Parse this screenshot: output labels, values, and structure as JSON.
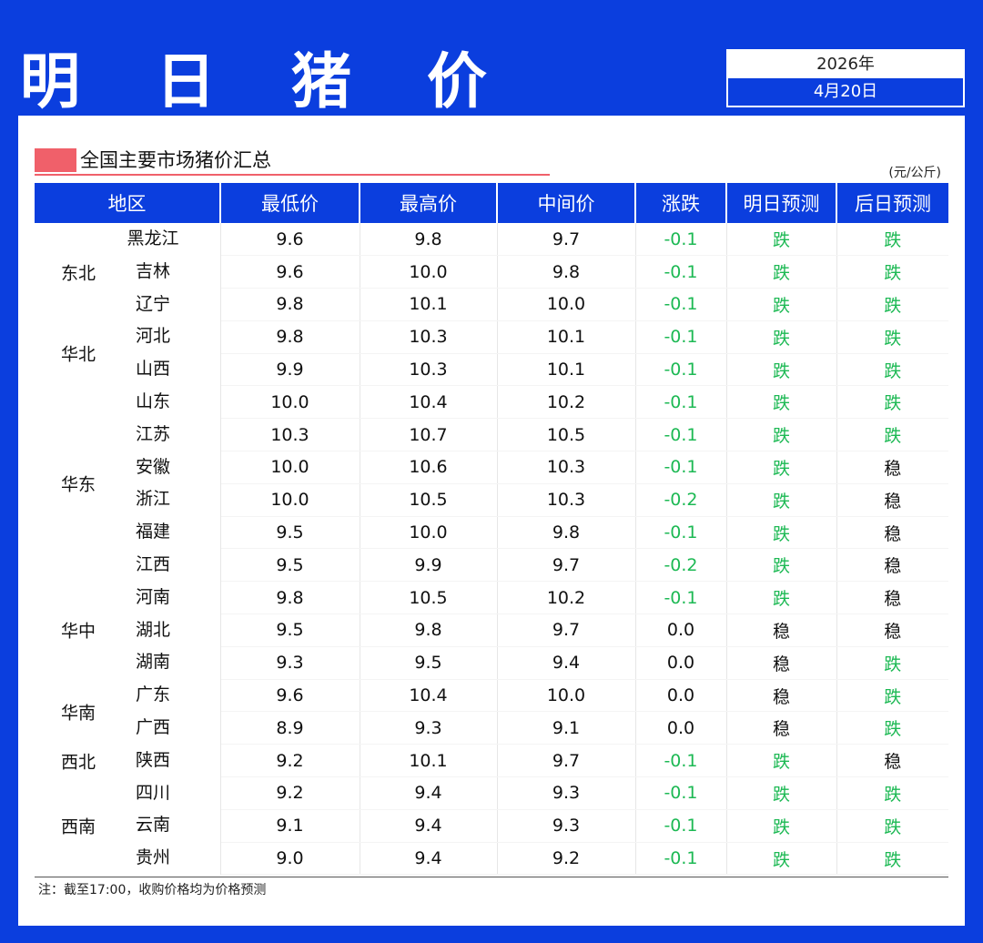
{
  "header": {
    "title": "明 日 猪 价",
    "year": "2026年",
    "date": "4月20日"
  },
  "section": {
    "title": "全国主要市场猪价汇总",
    "unit": "(元/公斤)"
  },
  "colors": {
    "brand_blue": "#0b3ede",
    "accent_red": "#f0606a",
    "fall_green": "#1db954"
  },
  "table": {
    "columns": [
      "地区",
      "最低价",
      "最高价",
      "中间价",
      "涨跌",
      "明日预测",
      "后日预测"
    ],
    "regions": [
      {
        "name": "东北",
        "span": 3
      },
      {
        "name": "华北",
        "span": 2
      },
      {
        "name": "华东",
        "span": 6
      },
      {
        "name": "华中",
        "span": 3
      },
      {
        "name": "华南",
        "span": 2
      },
      {
        "name": "西北",
        "span": 1
      },
      {
        "name": "西南",
        "span": 3
      }
    ],
    "rows": [
      {
        "province": "黑龙江",
        "low": "9.6",
        "high": "9.8",
        "mid": "9.7",
        "change": "-0.1",
        "tomorrow": "跌",
        "after": "跌"
      },
      {
        "province": "吉林",
        "low": "9.6",
        "high": "10.0",
        "mid": "9.8",
        "change": "-0.1",
        "tomorrow": "跌",
        "after": "跌"
      },
      {
        "province": "辽宁",
        "low": "9.8",
        "high": "10.1",
        "mid": "10.0",
        "change": "-0.1",
        "tomorrow": "跌",
        "after": "跌"
      },
      {
        "province": "河北",
        "low": "9.8",
        "high": "10.3",
        "mid": "10.1",
        "change": "-0.1",
        "tomorrow": "跌",
        "after": "跌"
      },
      {
        "province": "山西",
        "low": "9.9",
        "high": "10.3",
        "mid": "10.1",
        "change": "-0.1",
        "tomorrow": "跌",
        "after": "跌"
      },
      {
        "province": "山东",
        "low": "10.0",
        "high": "10.4",
        "mid": "10.2",
        "change": "-0.1",
        "tomorrow": "跌",
        "after": "跌"
      },
      {
        "province": "江苏",
        "low": "10.3",
        "high": "10.7",
        "mid": "10.5",
        "change": "-0.1",
        "tomorrow": "跌",
        "after": "跌"
      },
      {
        "province": "安徽",
        "low": "10.0",
        "high": "10.6",
        "mid": "10.3",
        "change": "-0.1",
        "tomorrow": "跌",
        "after": "稳"
      },
      {
        "province": "浙江",
        "low": "10.0",
        "high": "10.5",
        "mid": "10.3",
        "change": "-0.2",
        "tomorrow": "跌",
        "after": "稳"
      },
      {
        "province": "福建",
        "low": "9.5",
        "high": "10.0",
        "mid": "9.8",
        "change": "-0.1",
        "tomorrow": "跌",
        "after": "稳"
      },
      {
        "province": "江西",
        "low": "9.5",
        "high": "9.9",
        "mid": "9.7",
        "change": "-0.2",
        "tomorrow": "跌",
        "after": "稳"
      },
      {
        "province": "河南",
        "low": "9.8",
        "high": "10.5",
        "mid": "10.2",
        "change": "-0.1",
        "tomorrow": "跌",
        "after": "稳"
      },
      {
        "province": "湖北",
        "low": "9.5",
        "high": "9.8",
        "mid": "9.7",
        "change": "0.0",
        "tomorrow": "稳",
        "after": "稳"
      },
      {
        "province": "湖南",
        "low": "9.3",
        "high": "9.5",
        "mid": "9.4",
        "change": "0.0",
        "tomorrow": "稳",
        "after": "跌"
      },
      {
        "province": "广东",
        "low": "9.6",
        "high": "10.4",
        "mid": "10.0",
        "change": "0.0",
        "tomorrow": "稳",
        "after": "跌"
      },
      {
        "province": "广西",
        "low": "8.9",
        "high": "9.3",
        "mid": "9.1",
        "change": "0.0",
        "tomorrow": "稳",
        "after": "跌"
      },
      {
        "province": "陕西",
        "low": "9.2",
        "high": "10.1",
        "mid": "9.7",
        "change": "-0.1",
        "tomorrow": "跌",
        "after": "稳"
      },
      {
        "province": "四川",
        "low": "9.2",
        "high": "9.4",
        "mid": "9.3",
        "change": "-0.1",
        "tomorrow": "跌",
        "after": "跌"
      },
      {
        "province": "云南",
        "low": "9.1",
        "high": "9.4",
        "mid": "9.3",
        "change": "-0.1",
        "tomorrow": "跌",
        "after": "跌"
      },
      {
        "province": "贵州",
        "low": "9.0",
        "high": "9.4",
        "mid": "9.2",
        "change": "-0.1",
        "tomorrow": "跌",
        "after": "跌"
      }
    ]
  },
  "footnote": "注：截至17:00，收购价格均为价格预测"
}
